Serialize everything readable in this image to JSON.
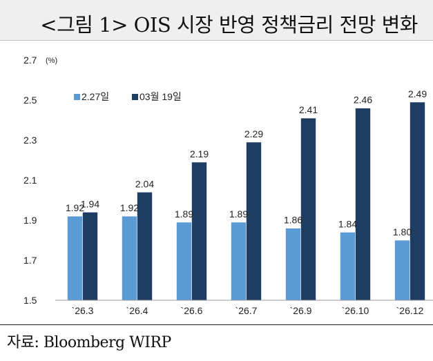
{
  "header": {
    "title": "<그림 1> OIS 시장 반영 정책금리 전망 변화"
  },
  "source": {
    "text": "자료: Bloomberg WIRP"
  },
  "chart_data": {
    "type": "bar",
    "title": "<그림 1> OIS 시장 반영 정책금리 전망 변화",
    "unit": "(%)",
    "categories": [
      "`26.3",
      "`26.4",
      "`26.6",
      "`26.7",
      "`26.9",
      "`26.10",
      "`26.12"
    ],
    "series": [
      {
        "name": "2.27일",
        "color": "#5b9bd5",
        "values": [
          1.92,
          1.92,
          1.89,
          1.89,
          1.86,
          1.84,
          1.8
        ]
      },
      {
        "name": "03월 19일",
        "color": "#1f3d63",
        "values": [
          1.94,
          2.04,
          2.19,
          2.29,
          2.41,
          2.46,
          2.49
        ]
      }
    ],
    "ylim": [
      1.5,
      2.7
    ],
    "yticks": [
      "1.5",
      "1.7",
      "1.9",
      "2.1",
      "2.3",
      "2.5",
      "2.7"
    ],
    "legend_position": "top-left",
    "grid": false,
    "xlabel": "",
    "ylabel": ""
  }
}
